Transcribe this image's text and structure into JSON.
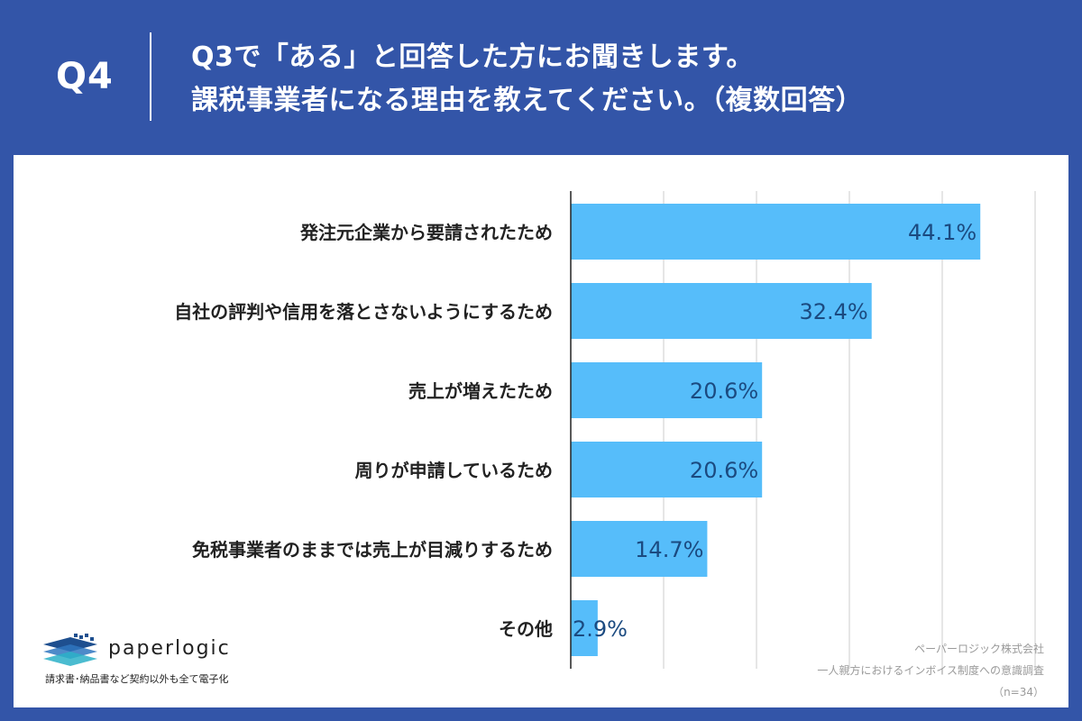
{
  "header": {
    "question_no": "Q4",
    "title_line1": "Q3で「ある」と回答した方にお聞きします。",
    "title_line2": "課税事業者になる理由を教えてください。（複数回答）"
  },
  "chart_data": {
    "type": "bar",
    "orientation": "horizontal",
    "categories": [
      "発注元企業から要請されたため",
      "自社の評判や信用を落とさないようにするため",
      "売上が増えたため",
      "周りが申請しているため",
      "免税事業者のままでは売上が目減りするため",
      "その他"
    ],
    "values": [
      44.1,
      32.4,
      20.6,
      20.6,
      14.7,
      2.9
    ],
    "value_labels": [
      "44.1%",
      "32.4%",
      "20.6%",
      "20.6%",
      "14.7%",
      "2.9%"
    ],
    "unit": "%",
    "xlim": [
      0,
      50
    ],
    "grid": true,
    "bar_color": "#56bdfa",
    "label_color": "#1b4a80"
  },
  "logo": {
    "name": "paperlogic",
    "tagline": "請求書･納品書など契約以外も全て電子化"
  },
  "source": {
    "company": "ペーパーロジック株式会社",
    "survey": "一人親方におけるインボイス制度への意識調査",
    "sample": "（n=34）"
  }
}
